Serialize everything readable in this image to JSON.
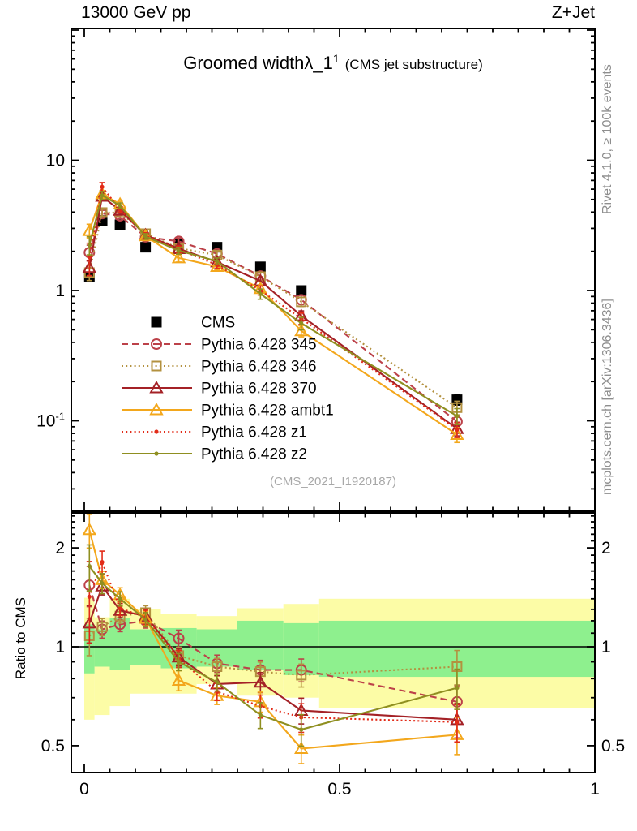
{
  "header": {
    "left": "13000 GeV pp",
    "right": "Z+Jet"
  },
  "title": {
    "main": "Groomed width",
    "lambda": "λ_1",
    "sup": "1",
    "paren": "(CMS jet substructure)"
  },
  "watermark": "(CMS_2021_I1920187)",
  "ratio_axis_label": "Ratio to CMS",
  "side_notes": {
    "top_right": "Rivet 4.1.0, ≥ 100k events",
    "bottom_right": "mcplots.cern.ch [arXiv:1306.3436]"
  },
  "chart_data": {
    "type": "line",
    "title": "Groomed width λ_1^1 (CMS jet substructure)",
    "x_label_ticks": [
      "0",
      "0.5",
      "1"
    ],
    "bin_edges": [
      0,
      0.02,
      0.05,
      0.09,
      0.15,
      0.22,
      0.3,
      0.39,
      0.46,
      1.0
    ],
    "x": [
      0.01,
      0.035,
      0.07,
      0.12,
      0.185,
      0.26,
      0.345,
      0.425,
      0.73
    ],
    "axes": {
      "x_range": [
        -0.0254,
        1.0
      ],
      "x_major": [
        {
          "v": 0,
          "t": "0"
        },
        {
          "v": 0.5,
          "t": "0.5"
        },
        {
          "v": 1,
          "t": "1"
        }
      ],
      "x_minor_step": 0.05,
      "y_main_range": [
        0.0202,
        103
      ],
      "y_main_scale": "log",
      "y_main_labels": [
        {
          "v": 10,
          "t": "10",
          "sup": ""
        },
        {
          "v": 1,
          "t": "1",
          "sup": ""
        },
        {
          "v": 0.1,
          "t": "10",
          "sup": "-1"
        }
      ],
      "y_ratio_range": [
        0.414,
        2.555
      ],
      "y_ratio_scale": "log",
      "y_ratio_labels": [
        {
          "v": 2,
          "t": "2"
        },
        {
          "v": 1,
          "t": "1"
        },
        {
          "v": 0.5,
          "t": "0.5"
        }
      ]
    },
    "reference": {
      "label": "CMS",
      "marker": "square-filled",
      "line": "none",
      "color": "#000000",
      "values": [
        1.27,
        3.45,
        3.2,
        2.15,
        2.25,
        2.15,
        1.52,
        1.0,
        0.145
      ],
      "err_frac": [
        0.05,
        0.03,
        0.03,
        0.03,
        0.03,
        0.03,
        0.04,
        0.05,
        0.09
      ]
    },
    "series": [
      {
        "label": "Pythia 6.428 345",
        "color": "#bc4149",
        "line": "dashed",
        "marker": "circle-open",
        "ratio": [
          1.54,
          1.13,
          1.17,
          1.2,
          1.06,
          0.89,
          0.85,
          0.85,
          0.68
        ],
        "err_frac": [
          0.14,
          0.06,
          0.05,
          0.05,
          0.06,
          0.06,
          0.07,
          0.08,
          0.12
        ]
      },
      {
        "label": "Pythia 6.428 346",
        "color": "#b3913f",
        "line": "dotted",
        "marker": "square-open",
        "ratio": [
          1.08,
          1.15,
          1.24,
          1.27,
          0.94,
          0.87,
          0.84,
          0.82,
          0.87
        ],
        "err_frac": [
          0.13,
          0.06,
          0.05,
          0.05,
          0.06,
          0.06,
          0.07,
          0.08,
          0.12
        ]
      },
      {
        "label": "Pythia 6.428 370",
        "color": "#a42126",
        "line": "solid",
        "marker": "triangle-open",
        "ratio": [
          1.18,
          1.53,
          1.29,
          1.24,
          0.93,
          0.77,
          0.78,
          0.64,
          0.6
        ],
        "err_frac": [
          0.13,
          0.06,
          0.05,
          0.05,
          0.06,
          0.06,
          0.07,
          0.09,
          0.12
        ]
      },
      {
        "label": "Pythia 6.428 ambt1",
        "color": "#f3a71c",
        "line": "solid",
        "marker": "triangle-open",
        "ratio": [
          2.27,
          1.6,
          1.44,
          1.22,
          0.79,
          0.71,
          0.68,
          0.49,
          0.54
        ],
        "err_frac": [
          0.12,
          0.06,
          0.05,
          0.05,
          0.07,
          0.06,
          0.07,
          0.1,
          0.13
        ]
      },
      {
        "label": "Pythia 6.428 z1",
        "color": "#e22b18",
        "line": "dotted",
        "marker": "dot",
        "ratio": [
          1.42,
          1.81,
          1.31,
          1.23,
          0.92,
          0.73,
          0.66,
          0.61,
          0.59
        ],
        "err_frac": [
          0.28,
          0.08,
          0.05,
          0.05,
          0.06,
          0.06,
          0.08,
          0.1,
          0.13
        ]
      },
      {
        "label": "Pythia 6.428 z2",
        "color": "#8f8f20",
        "line": "solid",
        "marker": "dot",
        "ratio": [
          1.76,
          1.56,
          1.4,
          1.21,
          0.9,
          0.78,
          0.62,
          0.56,
          0.75
        ],
        "err_frac": [
          0.16,
          0.07,
          0.05,
          0.05,
          0.06,
          0.06,
          0.09,
          0.11,
          0.14
        ]
      }
    ],
    "bands": {
      "yellow": {
        "color": "#fcfca6",
        "lo": [
          0.6,
          0.62,
          0.66,
          0.72,
          0.72,
          0.77,
          0.71,
          0.7,
          0.65
        ],
        "hi": [
          1.41,
          1.23,
          1.4,
          1.3,
          1.26,
          1.24,
          1.31,
          1.35,
          1.4
        ]
      },
      "green": {
        "color": "#8ef08e",
        "lo": [
          0.83,
          0.87,
          0.85,
          0.88,
          0.86,
          0.87,
          0.85,
          0.82,
          0.81
        ],
        "hi": [
          1.17,
          1.13,
          1.22,
          1.13,
          1.14,
          1.13,
          1.2,
          1.18,
          1.2
        ]
      }
    },
    "legend_position": "inside-left-middle",
    "grid": false
  }
}
